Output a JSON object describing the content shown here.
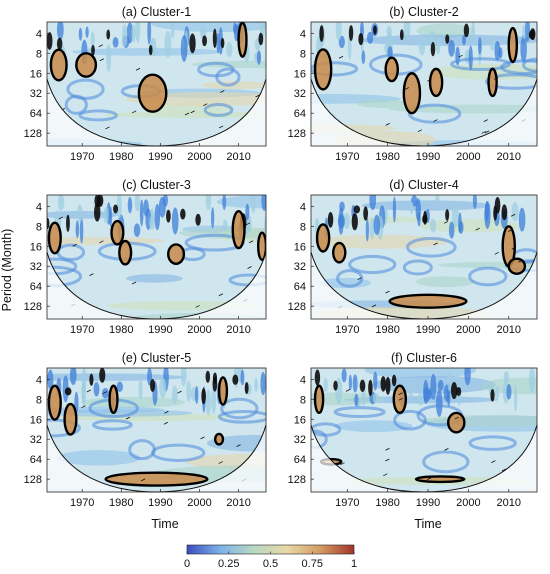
{
  "figure": {
    "ylabel": "Period (Month)",
    "xlabel": "Time"
  },
  "colorbar": {
    "ticks": [
      "0",
      "0.25",
      "0.5",
      "0.75",
      "1"
    ],
    "tick_values": [
      0,
      0.25,
      0.5,
      0.75,
      1
    ],
    "stops": [
      "#3b4cc0",
      "#7db3e8",
      "#b7d9c4",
      "#e9d8a6",
      "#d39a63",
      "#a3352a"
    ]
  },
  "chart_data": [
    {
      "type": "heatmap",
      "title": "(a) Cluster-1",
      "x_ticks": [
        "1970",
        "1980",
        "1990",
        "2000",
        "2010"
      ],
      "x_tick_values": [
        1970,
        1980,
        1990,
        2000,
        2010
      ],
      "xlim": [
        1961,
        2017
      ],
      "y_ticks": [
        "4",
        "8",
        "16",
        "32",
        "64",
        "128"
      ],
      "y_tick_values": [
        4,
        8,
        16,
        32,
        64,
        128
      ],
      "ylim": [
        2.7,
        200
      ],
      "y_scale": "log2",
      "significant_regions": [
        {
          "x_center": 1964,
          "period": 12,
          "x_width": 4,
          "period_factor": 1.7
        },
        {
          "x_center": 1971,
          "period": 12,
          "x_width": 5,
          "period_factor": 1.5
        },
        {
          "x_center": 1988,
          "period": 32,
          "x_width": 7,
          "period_factor": 1.9
        },
        {
          "x_center": 2011,
          "period": 5,
          "x_width": 2,
          "period_factor": 1.8
        }
      ]
    },
    {
      "type": "heatmap",
      "title": "(b) Cluster-2",
      "x_ticks": [
        "1970",
        "1980",
        "1990",
        "2000",
        "2010"
      ],
      "x_tick_values": [
        1970,
        1980,
        1990,
        2000,
        2010
      ],
      "xlim": [
        1961,
        2017
      ],
      "y_ticks": [
        "4",
        "8",
        "16",
        "32",
        "64",
        "128"
      ],
      "y_tick_values": [
        4,
        8,
        16,
        32,
        64,
        128
      ],
      "ylim": [
        2.7,
        200
      ],
      "y_scale": "log2",
      "significant_regions": [
        {
          "x_center": 1964,
          "period": 14,
          "x_width": 4,
          "period_factor": 2.0
        },
        {
          "x_center": 1986,
          "period": 32,
          "x_width": 4,
          "period_factor": 2.0
        },
        {
          "x_center": 1992,
          "period": 22,
          "x_width": 3,
          "period_factor": 1.6
        },
        {
          "x_center": 1981,
          "period": 14,
          "x_width": 3,
          "period_factor": 1.5
        },
        {
          "x_center": 2006,
          "period": 22,
          "x_width": 2,
          "period_factor": 1.6
        },
        {
          "x_center": 2011,
          "period": 6,
          "x_width": 2,
          "period_factor": 1.8
        }
      ]
    },
    {
      "type": "heatmap",
      "title": "(c) Cluster-3",
      "x_ticks": [
        "1970",
        "1980",
        "1990",
        "2000",
        "2010"
      ],
      "x_tick_values": [
        1970,
        1980,
        1990,
        2000,
        2010
      ],
      "xlim": [
        1961,
        2017
      ],
      "y_ticks": [
        "4",
        "8",
        "16",
        "32",
        "64",
        "128"
      ],
      "y_tick_values": [
        4,
        8,
        16,
        32,
        64,
        128
      ],
      "ylim": [
        2.7,
        200
      ],
      "y_scale": "log2",
      "significant_regions": [
        {
          "x_center": 1963,
          "period": 12,
          "x_width": 3,
          "period_factor": 1.7
        },
        {
          "x_center": 1979,
          "period": 10,
          "x_width": 3,
          "period_factor": 1.5
        },
        {
          "x_center": 1981,
          "period": 20,
          "x_width": 3,
          "period_factor": 1.5
        },
        {
          "x_center": 1994,
          "period": 21,
          "x_width": 4,
          "period_factor": 1.4
        },
        {
          "x_center": 2010,
          "period": 9,
          "x_width": 3,
          "period_factor": 1.9
        },
        {
          "x_center": 2016,
          "period": 16,
          "x_width": 2,
          "period_factor": 1.6
        }
      ]
    },
    {
      "type": "heatmap",
      "title": "(d) Cluster-4",
      "x_ticks": [
        "1970",
        "1980",
        "1990",
        "2000",
        "2010"
      ],
      "x_tick_values": [
        1970,
        1980,
        1990,
        2000,
        2010
      ],
      "xlim": [
        1961,
        2017
      ],
      "y_ticks": [
        "4",
        "8",
        "16",
        "32",
        "64",
        "128"
      ],
      "y_tick_values": [
        4,
        8,
        16,
        32,
        64,
        128
      ],
      "ylim": [
        2.7,
        200
      ],
      "y_scale": "log2",
      "significant_regions": [
        {
          "x_center": 1964,
          "period": 12,
          "x_width": 3,
          "period_factor": 1.6
        },
        {
          "x_center": 1968,
          "period": 20,
          "x_width": 3,
          "period_factor": 1.4
        },
        {
          "x_center": 1990,
          "period": 108,
          "x_width": 19,
          "period_factor": 1.25
        },
        {
          "x_center": 2010,
          "period": 16,
          "x_width": 3,
          "period_factor": 2.0
        },
        {
          "x_center": 2012,
          "period": 32,
          "x_width": 4,
          "period_factor": 1.3
        }
      ]
    },
    {
      "type": "heatmap",
      "title": "(e) Cluster-5",
      "x_ticks": [
        "1970",
        "1980",
        "1990",
        "2000",
        "2010"
      ],
      "x_tick_values": [
        1970,
        1980,
        1990,
        2000,
        2010
      ],
      "xlim": [
        1961,
        2017
      ],
      "y_ticks": [
        "4",
        "8",
        "16",
        "32",
        "64",
        "128"
      ],
      "y_tick_values": [
        4,
        8,
        16,
        32,
        64,
        128
      ],
      "ylim": [
        2.7,
        200
      ],
      "y_scale": "log2",
      "significant_regions": [
        {
          "x_center": 1963,
          "period": 9,
          "x_width": 3,
          "period_factor": 1.8
        },
        {
          "x_center": 1967,
          "period": 16,
          "x_width": 3,
          "period_factor": 1.7
        },
        {
          "x_center": 1978,
          "period": 8,
          "x_width": 2,
          "period_factor": 1.6
        },
        {
          "x_center": 1989,
          "period": 128,
          "x_width": 26,
          "period_factor": 1.25
        },
        {
          "x_center": 2006,
          "period": 6,
          "x_width": 2,
          "period_factor": 1.6
        },
        {
          "x_center": 2005,
          "period": 32,
          "x_width": 2,
          "period_factor": 1.2
        }
      ]
    },
    {
      "type": "heatmap",
      "title": "(f) Cluster-6",
      "x_ticks": [
        "1970",
        "1980",
        "1990",
        "2000",
        "2010"
      ],
      "x_tick_values": [
        1970,
        1980,
        1990,
        2000,
        2010
      ],
      "xlim": [
        1961,
        2017
      ],
      "y_ticks": [
        "4",
        "8",
        "16",
        "32",
        "64",
        "128"
      ],
      "y_tick_values": [
        4,
        8,
        16,
        32,
        64,
        128
      ],
      "ylim": [
        2.7,
        200
      ],
      "y_scale": "log2",
      "significant_regions": [
        {
          "x_center": 1963,
          "period": 8,
          "x_width": 2,
          "period_factor": 1.6
        },
        {
          "x_center": 1983,
          "period": 8,
          "x_width": 3,
          "period_factor": 1.6
        },
        {
          "x_center": 1997,
          "period": 18,
          "x_width": 4,
          "period_factor": 1.4
        },
        {
          "x_center": 1966,
          "period": 70,
          "x_width": 5,
          "period_factor": 1.1
        },
        {
          "x_center": 1993,
          "period": 128,
          "x_width": 12,
          "period_factor": 1.1
        }
      ]
    }
  ]
}
